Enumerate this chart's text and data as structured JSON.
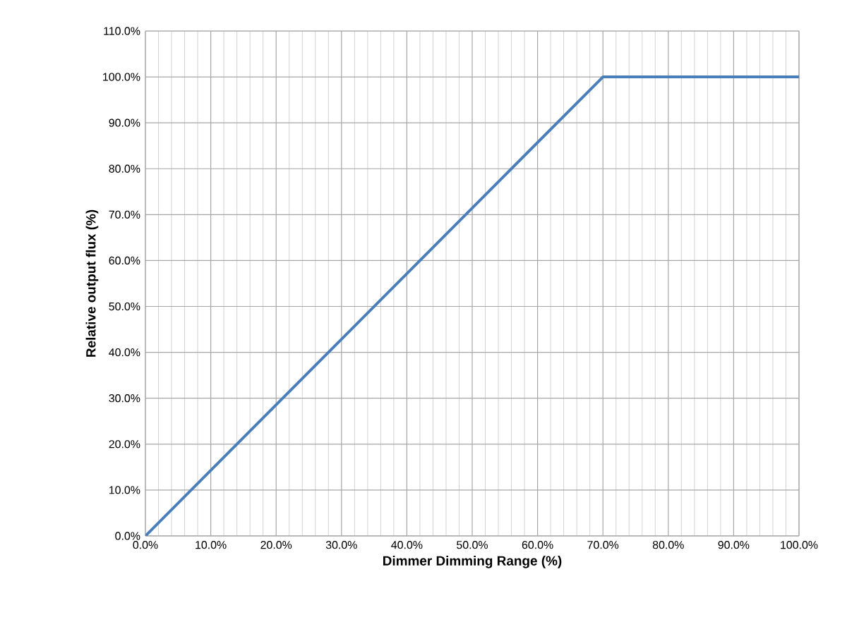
{
  "chart_data": {
    "type": "line",
    "xlabel": "Dimmer Dimming Range  (%)",
    "ylabel": "Relative output flux (%)",
    "x": [
      0,
      70,
      100
    ],
    "series": [
      {
        "color": "#4a7ebb",
        "values": [
          0,
          100,
          100
        ]
      }
    ],
    "xlim": [
      0,
      100
    ],
    "ylim": [
      0,
      110
    ],
    "xticks": [
      {
        "value": 0,
        "label": "0.0%"
      },
      {
        "value": 10,
        "label": "10.0%"
      },
      {
        "value": 20,
        "label": "20.0%"
      },
      {
        "value": 30,
        "label": "30.0%"
      },
      {
        "value": 40,
        "label": "40.0%"
      },
      {
        "value": 50,
        "label": "50.0%"
      },
      {
        "value": 60,
        "label": "60.0%"
      },
      {
        "value": 70,
        "label": "70.0%"
      },
      {
        "value": 80,
        "label": "80.0%"
      },
      {
        "value": 90,
        "label": "90.0%"
      },
      {
        "value": 100,
        "label": "100.0%"
      }
    ],
    "yticks": [
      {
        "value": 0,
        "label": "0.0%"
      },
      {
        "value": 10,
        "label": "10.0%"
      },
      {
        "value": 20,
        "label": "20.0%"
      },
      {
        "value": 30,
        "label": "30.0%"
      },
      {
        "value": 40,
        "label": "40.0%"
      },
      {
        "value": 50,
        "label": "50.0%"
      },
      {
        "value": 60,
        "label": "60.0%"
      },
      {
        "value": 70,
        "label": "70.0%"
      },
      {
        "value": 80,
        "label": "80.0%"
      },
      {
        "value": 90,
        "label": "90.0%"
      },
      {
        "value": 100,
        "label": "100.0%"
      },
      {
        "value": 110,
        "label": "110.0%"
      }
    ],
    "grid": true,
    "line_style": "solid",
    "marker": "none"
  }
}
